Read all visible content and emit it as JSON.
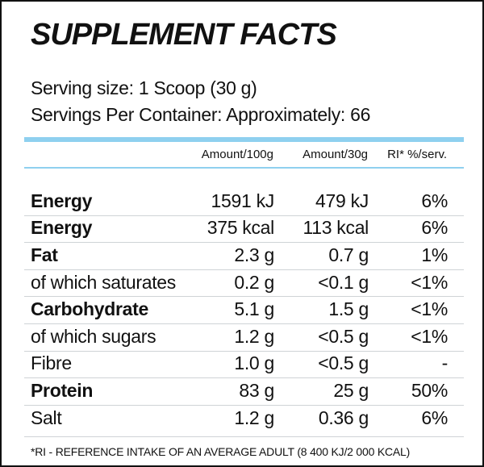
{
  "header": {
    "title": "SUPPLEMENT FACTS"
  },
  "serving": {
    "size": "Serving size: 1 Scoop (30 g)",
    "servings": "Servings Per Container: Approximately: 66"
  },
  "table": {
    "columns": [
      "Amount/100g",
      "Amount/30g",
      "RI* %/serv."
    ],
    "rows": [
      {
        "label": "Energy",
        "bold": true,
        "cells": [
          "1591 kJ",
          "479 kJ",
          "6%"
        ]
      },
      {
        "label": "Energy",
        "bold": true,
        "cells": [
          "375 kcal",
          "113 kcal",
          "6%"
        ]
      },
      {
        "label": "Fat",
        "bold": true,
        "cells": [
          "2.3 g",
          "0.7 g",
          "1%"
        ]
      },
      {
        "label": "of which saturates",
        "bold": false,
        "cells": [
          "0.2 g",
          "<0.1 g",
          "<1%"
        ]
      },
      {
        "label": "Carbohydrate",
        "bold": true,
        "cells": [
          "5.1 g",
          "1.5 g",
          "<1%"
        ]
      },
      {
        "label": "of which sugars",
        "bold": false,
        "cells": [
          "1.2 g",
          "<0.5 g",
          "<1%"
        ]
      },
      {
        "label": "Fibre",
        "bold": false,
        "cells": [
          "1.0 g",
          "<0.5 g",
          "-"
        ]
      },
      {
        "label": "Protein",
        "bold": true,
        "cells": [
          "83 g",
          "25 g",
          "50%"
        ]
      },
      {
        "label": "Salt",
        "bold": false,
        "cells": [
          "1.2 g",
          "0.36 g",
          "6%"
        ]
      }
    ]
  },
  "footer": "*RI - REFERENCE INTAKE OF AN AVERAGE ADULT (8 400 KJ/2 000 KCAL)"
}
